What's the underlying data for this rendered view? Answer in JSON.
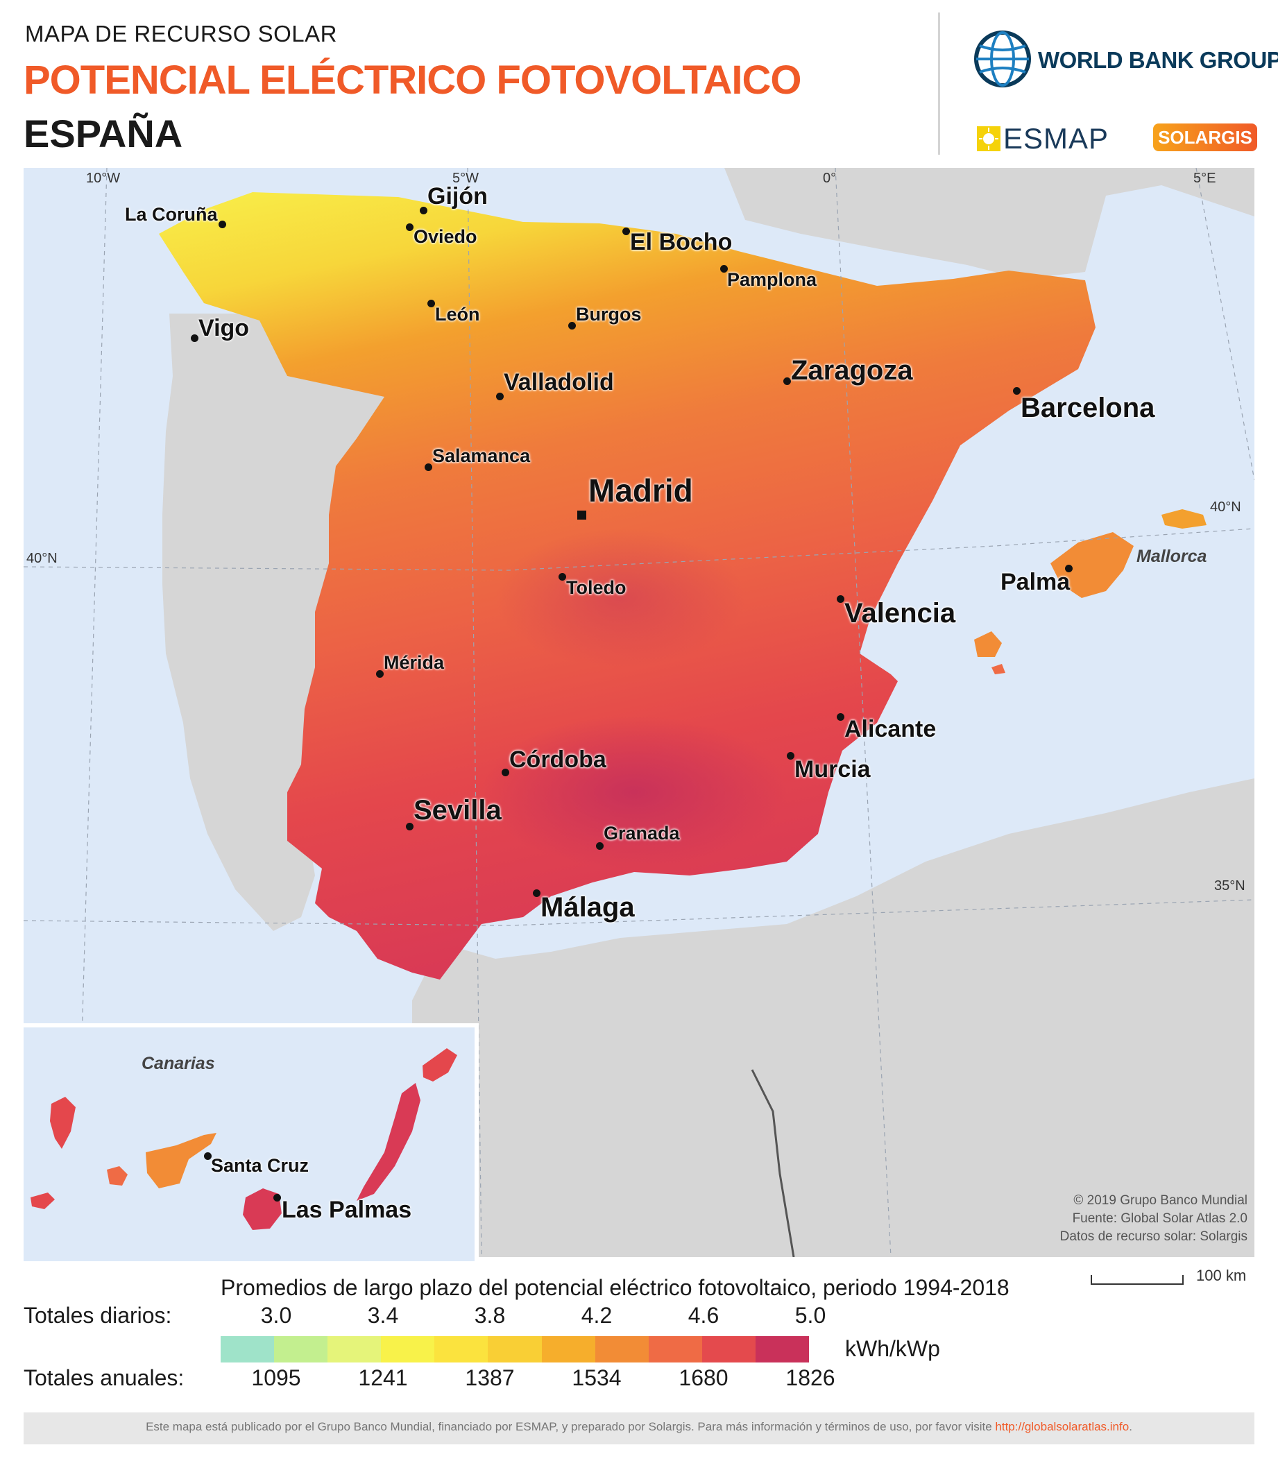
{
  "header": {
    "subtitle": "MAPA DE RECURSO SOLAR",
    "title": "POTENCIAL ELÉCTRICO FOTOVOLTAICO",
    "country": "ESPAÑA"
  },
  "logos": {
    "world_bank": "WORLD BANK GROUP",
    "esmap": "ESMAP",
    "solargis": "SOLARGIS"
  },
  "map": {
    "cities": {
      "la_coruna": "La Coruña",
      "gijon": "Gijón",
      "oviedo": "Oviedo",
      "el_bocho": "El Bocho",
      "pamplona": "Pamplona",
      "vigo": "Vigo",
      "leon": "León",
      "burgos": "Burgos",
      "zaragoza": "Zaragoza",
      "valladolid": "Valladolid",
      "barcelona": "Barcelona",
      "salamanca": "Salamanca",
      "madrid": "Madrid",
      "toledo": "Toledo",
      "valencia": "Valencia",
      "palma": "Palma",
      "merida": "Mérida",
      "alicante": "Alicante",
      "murcia": "Murcia",
      "cordoba": "Córdoba",
      "sevilla": "Sevilla",
      "granada": "Granada",
      "malaga": "Málaga",
      "santa_cruz": "Santa Cruz",
      "las_palmas": "Las Palmas"
    },
    "regions": {
      "mallorca": "Mallorca",
      "canarias": "Canarias"
    },
    "graticule": {
      "lon_10w": "10°W",
      "lon_5w": "5°W",
      "lon_0": "0°",
      "lon_5e": "5°E",
      "lat_40n_left": "40°N",
      "lat_40n_right": "40°N",
      "lat_35n": "35°N"
    },
    "credits": {
      "copyright": "© 2019 Grupo Banco Mundial",
      "source": "Fuente: Global Solar Atlas 2.0",
      "data": "Datos de recurso solar: Solargis"
    },
    "scale_label": "100 km"
  },
  "legend": {
    "heading": "Promedios de largo plazo del potencial eléctrico fotovoltaico, periodo 1994-2018",
    "daily_label": "Totales diarios:",
    "annual_label": "Totales anuales:",
    "daily_ticks": [
      "3.0",
      "3.4",
      "3.8",
      "4.2",
      "4.6",
      "5.0"
    ],
    "annual_ticks": [
      "1095",
      "1241",
      "1387",
      "1534",
      "1680",
      "1826"
    ],
    "unit": "kWh/kWp",
    "colors": [
      "#9fe3c9",
      "#c3ef8f",
      "#e5f47a",
      "#f8f24a",
      "#fbe33e",
      "#f9cf35",
      "#f6ae2c",
      "#f28c36",
      "#ef6b45",
      "#e44a4d",
      "#c9315a"
    ]
  },
  "footer": {
    "text": "Este mapa está publicado por el Grupo Banco Mundial, financiado por ESMAP, y preparado por Solargis. Para más información y términos de uso, por favor visite",
    "link": "http://globalsolaratlas.info",
    "period": "."
  }
}
